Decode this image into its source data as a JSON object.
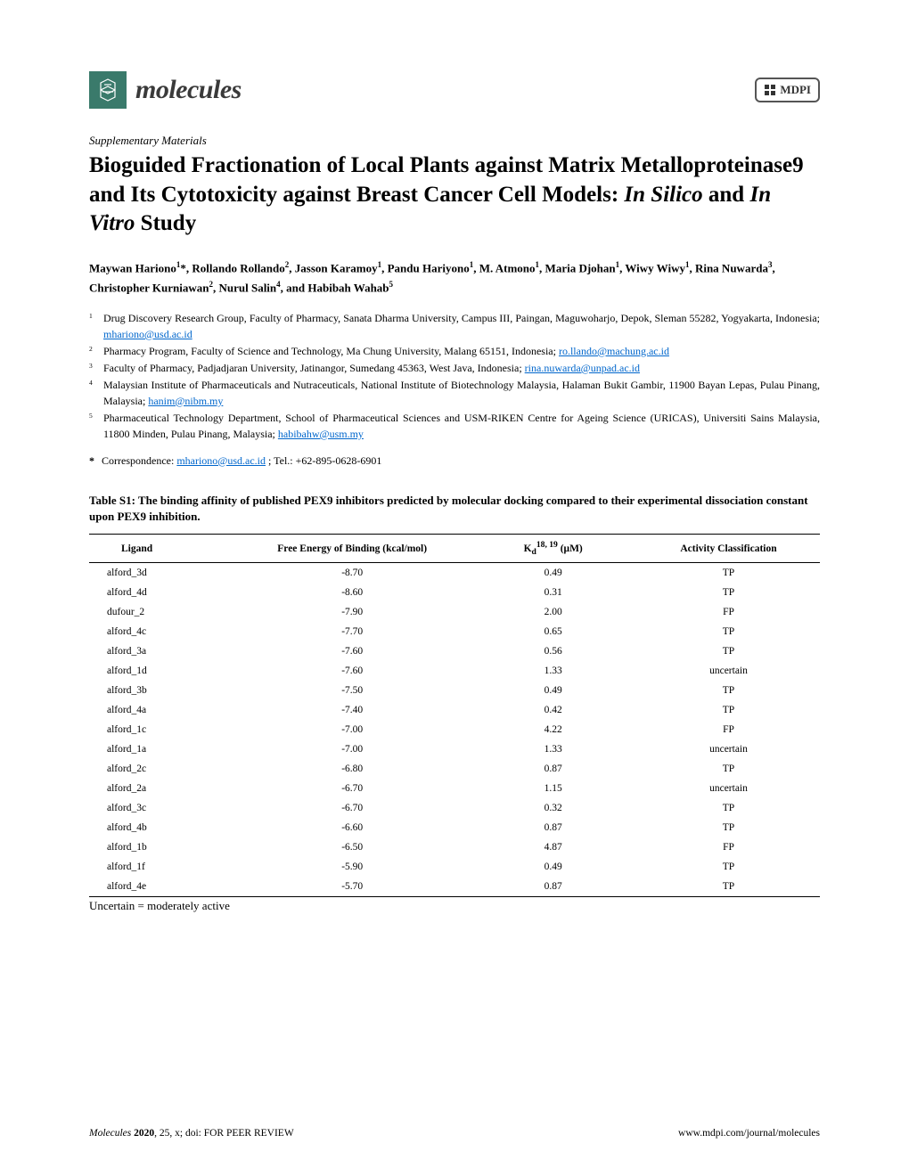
{
  "journal": {
    "name": "molecules",
    "publisher": "MDPI",
    "logo_bg_color": "#3a7a6b"
  },
  "section_label": "Supplementary Materials",
  "title_parts": {
    "prefix": "Bioguided Fractionation of Local Plants against Matrix Metalloproteinase9 and Its Cytotoxicity against Breast Cancer Cell Models: ",
    "italic1": "In Silico",
    "mid": " and ",
    "italic2": "In Vitro",
    "suffix": " Study"
  },
  "authors_html": "Maywan Hariono<sup>1</sup>*, Rollando Rollando<sup>2</sup>, Jasson Karamoy<sup>1</sup>, Pandu Hariyono<sup>1</sup>, M. Atmono<sup>1</sup>, Maria Djohan<sup>1</sup>, Wiwy Wiwy<sup>1</sup>, Rina Nuwarda<sup>3</sup>, Christopher Kurniawan<sup>2</sup>, Nurul Salin<sup>4</sup>, and Habibah Wahab<sup>5</sup>",
  "affiliations": [
    {
      "num": "1",
      "text": "Drug Discovery Research Group, Faculty of Pharmacy, Sanata Dharma University, Campus III, Paingan, Maguwoharjo, Depok, Sleman 55282, Yogyakarta, Indonesia; ",
      "email": "mhariono@usd.ac.id"
    },
    {
      "num": "2",
      "text": "Pharmacy Program, Faculty of Science and Technology, Ma Chung University, Malang 65151, Indonesia; ",
      "email": "ro.llando@machung.ac.id"
    },
    {
      "num": "3",
      "text": "Faculty of Pharmacy, Padjadjaran University, Jatinangor, Sumedang 45363, West Java, Indonesia; ",
      "email": "rina.nuwarda@unpad.ac.id"
    },
    {
      "num": "4",
      "text": "Malaysian Institute of Pharmaceuticals and Nutraceuticals, National Institute of Biotechnology Malaysia, Halaman Bukit Gambir, 11900 Bayan Lepas, Pulau Pinang, Malaysia; ",
      "email": "hanim@nibm.my"
    },
    {
      "num": "5",
      "text": "Pharmaceutical Technology Department, School of Pharmaceutical Sciences and USM-RIKEN Centre for Ageing Science (URICAS), Universiti Sains Malaysia, 11800 Minden, Pulau Pinang, Malaysia; ",
      "email": "habibahw@usm.my"
    }
  ],
  "correspondence": {
    "label": "Correspondence: ",
    "email": "mhariono@usd.ac.id",
    "phone": " ; Tel.: +62-895-0628-6901"
  },
  "table": {
    "caption": "Table S1: The binding affinity of published PEX9 inhibitors predicted by molecular docking compared to their experimental dissociation constant upon PEX9 inhibition.",
    "columns": [
      "Ligand",
      "Free Energy of Binding (kcal/mol)",
      "Kd_header",
      "Activity Classification"
    ],
    "kd_header_html": "K<sub>d</sub><sup>18, 19</sup> (<b>μ</b>M)",
    "rows": [
      [
        "alford_3d",
        "-8.70",
        "0.49",
        "TP"
      ],
      [
        "alford_4d",
        "-8.60",
        "0.31",
        "TP"
      ],
      [
        "dufour_2",
        "-7.90",
        "2.00",
        "FP"
      ],
      [
        "alford_4c",
        "-7.70",
        "0.65",
        "TP"
      ],
      [
        "alford_3a",
        "-7.60",
        "0.56",
        "TP"
      ],
      [
        "alford_1d",
        "-7.60",
        "1.33",
        "uncertain"
      ],
      [
        "alford_3b",
        "-7.50",
        "0.49",
        "TP"
      ],
      [
        "alford_4a",
        "-7.40",
        "0.42",
        "TP"
      ],
      [
        "alford_1c",
        "-7.00",
        "4.22",
        "FP"
      ],
      [
        "alford_1a",
        "-7.00",
        "1.33",
        "uncertain"
      ],
      [
        "alford_2c",
        "-6.80",
        "0.87",
        "TP"
      ],
      [
        "alford_2a",
        "-6.70",
        "1.15",
        "uncertain"
      ],
      [
        "alford_3c",
        "-6.70",
        "0.32",
        "TP"
      ],
      [
        "alford_4b",
        "-6.60",
        "0.87",
        "TP"
      ],
      [
        "alford_1b",
        "-6.50",
        "4.87",
        "FP"
      ],
      [
        "alford_1f",
        "-5.90",
        "0.49",
        "TP"
      ],
      [
        "alford_4e",
        "-5.70",
        "0.87",
        "TP"
      ]
    ],
    "note": "Uncertain = moderately active"
  },
  "footer": {
    "left_italic": "Molecules ",
    "left_bold": "2020",
    "left_rest": ", 25, x; doi: FOR PEER REVIEW",
    "right": "www.mdpi.com/journal/molecules"
  },
  "styling": {
    "page_bg": "#ffffff",
    "text_color": "#000000",
    "link_color": "#0066cc",
    "title_fontsize": 25,
    "body_fontsize": 13,
    "table_fontsize": 11.5,
    "border_color": "#000000"
  }
}
